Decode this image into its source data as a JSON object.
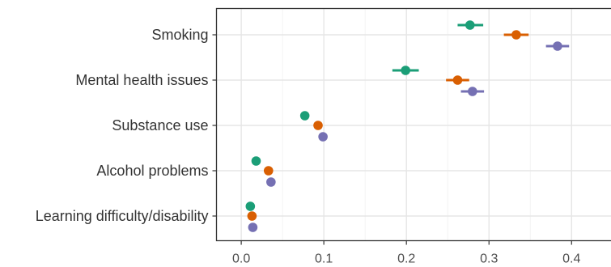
{
  "chart_data": {
    "type": "scatter",
    "title": "",
    "xlabel": "",
    "ylabel": "",
    "xlim": [
      -0.03,
      0.46
    ],
    "x_ticks": [
      0.0,
      0.1,
      0.2,
      0.3,
      0.4
    ],
    "x_tick_labels": [
      "0.0",
      "0.1",
      "0.2",
      "0.3",
      "0.4"
    ],
    "grid": true,
    "legend": "none",
    "categories": [
      "Smoking",
      "Mental health issues",
      "Substance use",
      "Alcohol problems",
      "Learning difficulty/disability"
    ],
    "series": [
      {
        "color": "#1b9e77",
        "values": [
          0.277,
          0.199,
          0.077,
          0.018,
          0.011
        ],
        "ci_low": [
          0.262,
          0.183,
          0.072,
          0.015,
          0.008
        ],
        "ci_high": [
          0.293,
          0.215,
          0.082,
          0.021,
          0.014
        ]
      },
      {
        "color": "#d95f02",
        "values": [
          0.333,
          0.262,
          0.093,
          0.033,
          0.013
        ],
        "ci_low": [
          0.318,
          0.248,
          0.088,
          0.03,
          0.01
        ],
        "ci_high": [
          0.348,
          0.276,
          0.098,
          0.036,
          0.016
        ]
      },
      {
        "color": "#7570b3",
        "values": [
          0.383,
          0.28,
          0.099,
          0.036,
          0.014
        ],
        "ci_low": [
          0.369,
          0.266,
          0.094,
          0.033,
          0.011
        ],
        "ci_high": [
          0.397,
          0.294,
          0.104,
          0.039,
          0.017
        ]
      }
    ]
  }
}
